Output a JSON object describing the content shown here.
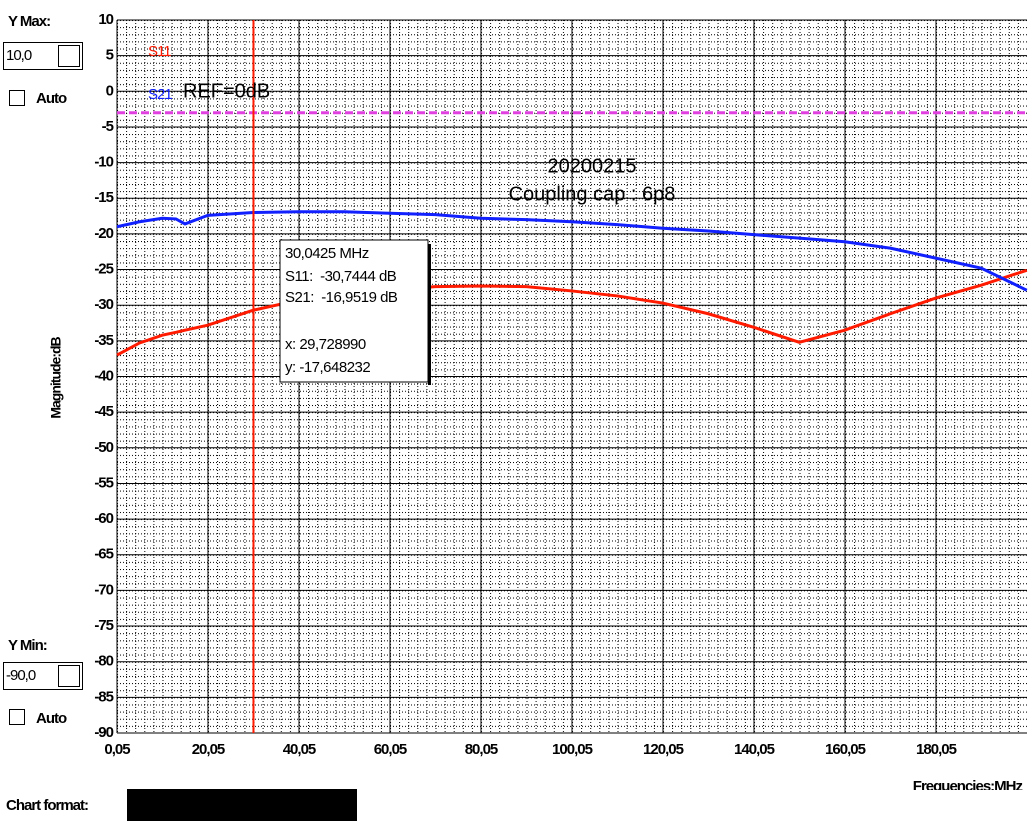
{
  "controls": {
    "y_max_label": "Y Max:",
    "y_max_value": "10,0",
    "y_max_auto": "Auto",
    "y_min_label": "Y Min:",
    "y_min_value": "-90,0",
    "y_min_auto": "Auto",
    "chart_format_label": "Chart format:"
  },
  "chart_data": {
    "type": "line",
    "x_label": "Frequencies:MHz",
    "y_label": "Magnitude:dB",
    "annotations": [
      "20200215",
      "Coupling cap : 6p8"
    ],
    "x": [
      0.05,
      5,
      10,
      13,
      15,
      20,
      30,
      40,
      50,
      60,
      70,
      80,
      90,
      100,
      110,
      120,
      130,
      140,
      150,
      160,
      170,
      180,
      190,
      200
    ],
    "series": [
      {
        "name": "S11",
        "color": "#ff1a00",
        "values": [
          -37.0,
          -35.3,
          -34.2,
          -33.8,
          -33.5,
          -32.8,
          -30.7,
          -29.3,
          -28.4,
          -27.9,
          -27.4,
          -27.3,
          -27.4,
          -28.0,
          -28.7,
          -29.7,
          -31.2,
          -33.1,
          -35.2,
          -33.5,
          -31.2,
          -29.0,
          -27.2,
          -25.1
        ]
      },
      {
        "name": "S21",
        "color": "#1020ff",
        "values": [
          -19.0,
          -18.3,
          -17.8,
          -17.9,
          -18.6,
          -17.4,
          -17.0,
          -16.9,
          -16.9,
          -17.1,
          -17.3,
          -17.8,
          -18.0,
          -18.3,
          -18.7,
          -19.2,
          -19.6,
          -20.1,
          -20.6,
          -21.1,
          -22.0,
          -23.4,
          -24.8,
          -27.9
        ]
      }
    ],
    "xlim": [
      0.05,
      200.05
    ],
    "ylim": [
      -90,
      10
    ],
    "xticks": [
      {
        "value": 0.05,
        "label": "0,05"
      },
      {
        "value": 20.05,
        "label": "20,05"
      },
      {
        "value": 40.05,
        "label": "40,05"
      },
      {
        "value": 60.05,
        "label": "60,05"
      },
      {
        "value": 80.05,
        "label": "80,05"
      },
      {
        "value": 100.05,
        "label": "100,05"
      },
      {
        "value": 120.05,
        "label": "120,05"
      },
      {
        "value": 140.05,
        "label": "140,05"
      },
      {
        "value": 160.05,
        "label": "160,05"
      },
      {
        "value": 180.05,
        "label": "180,05"
      }
    ],
    "yticks": [
      -90,
      -85,
      -80,
      -75,
      -70,
      -65,
      -60,
      -55,
      -50,
      -45,
      -40,
      -35,
      -30,
      -25,
      -20,
      -15,
      -10,
      -5,
      0,
      5,
      10
    ],
    "grid": true,
    "ref_line": {
      "value": -3,
      "label": "REF=0dB",
      "color": "#e040e0"
    },
    "marker": {
      "x": 30.0425,
      "label": "30,0425 MHz",
      "color": "#ff1a00"
    },
    "tooltip": [
      "S11:  -30,7444 dB",
      "S21:  -16,9519 dB",
      "x: 29,728990",
      "y: -17,648232"
    ]
  }
}
